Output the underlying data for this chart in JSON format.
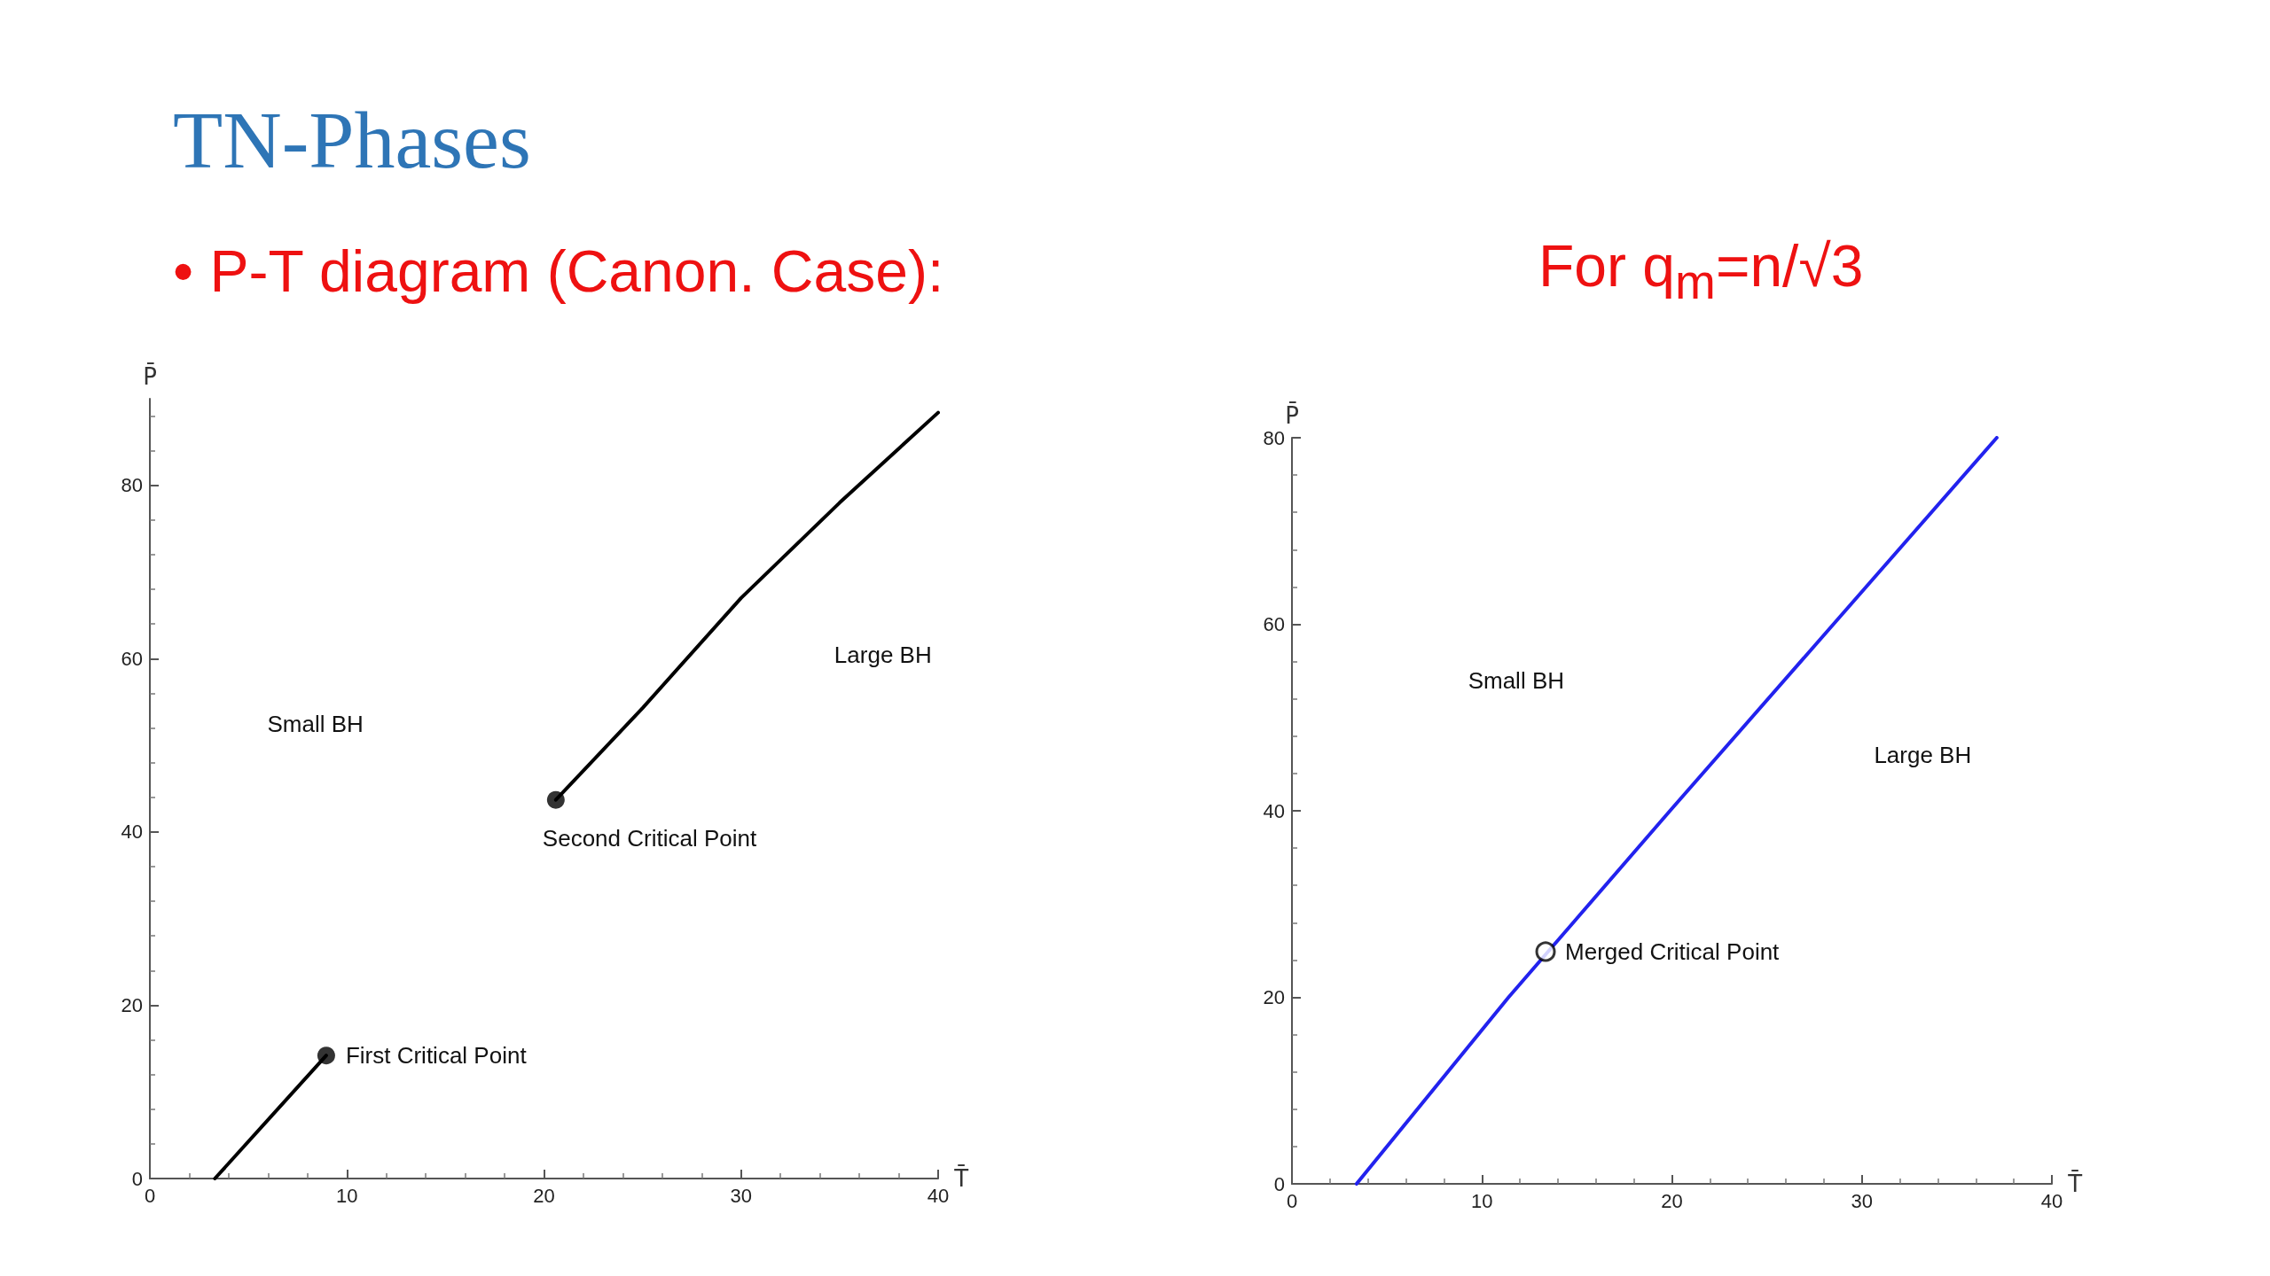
{
  "chart_data": [
    {
      "type": "line",
      "title": "TN-Phases",
      "subtitle": "• P-T diagram (Canon. Case):",
      "xlabel": "T̄",
      "ylabel": "P̄",
      "xlim": [
        0,
        40
      ],
      "ylim": [
        0,
        90
      ],
      "xticks": [
        0,
        10,
        20,
        30,
        40
      ],
      "yticks": [
        0,
        20,
        40,
        60,
        80
      ],
      "grid": false,
      "marker": "none",
      "line_style": "solid",
      "series": [
        {
          "color": "#000000",
          "x": [
            3.3,
            8.95
          ],
          "values": [
            0,
            14.2
          ]
        },
        {
          "color": "#000000",
          "x": [
            20.6,
            25,
            30,
            35,
            40
          ],
          "values": [
            43.7,
            54.3,
            67,
            78,
            88.4
          ]
        },
        {
          "type": "scatter",
          "marker": "circle",
          "color": "#000000",
          "x": [
            8.95,
            20.6
          ],
          "values": [
            14.2,
            43.7
          ]
        }
      ],
      "annotations": [
        {
          "text": "First Critical Point",
          "x": 8.95,
          "y": 14.2
        },
        {
          "text": "Second Critical Point",
          "x": 20.6,
          "y": 43.7
        },
        "Small BH",
        "Large BH"
      ]
    },
    {
      "type": "line",
      "title": "For q$_{m}$=n/√3",
      "xlabel": "T̄",
      "ylabel": "P̄",
      "xlim": [
        0,
        40
      ],
      "ylim": [
        0,
        80
      ],
      "xticks": [
        0,
        10,
        20,
        30,
        40
      ],
      "yticks": [
        0,
        20,
        40,
        60,
        80
      ],
      "grid": false,
      "marker": "none",
      "line_style": "solid",
      "series": [
        {
          "color": "#2222ee",
          "x": [
            3.4,
            11.4,
            19.9,
            28.5,
            37.1
          ],
          "values": [
            0,
            20,
            40,
            60,
            80
          ]
        },
        {
          "type": "scatter",
          "marker": "circle",
          "color": "#ffffff",
          "x": [
            13.35
          ],
          "values": [
            24.9
          ]
        }
      ],
      "annotations": [
        {
          "text": "Merged Critical Point",
          "x": 13.35,
          "y": 24.9
        },
        "Small BH",
        "Large BH"
      ]
    }
  ]
}
